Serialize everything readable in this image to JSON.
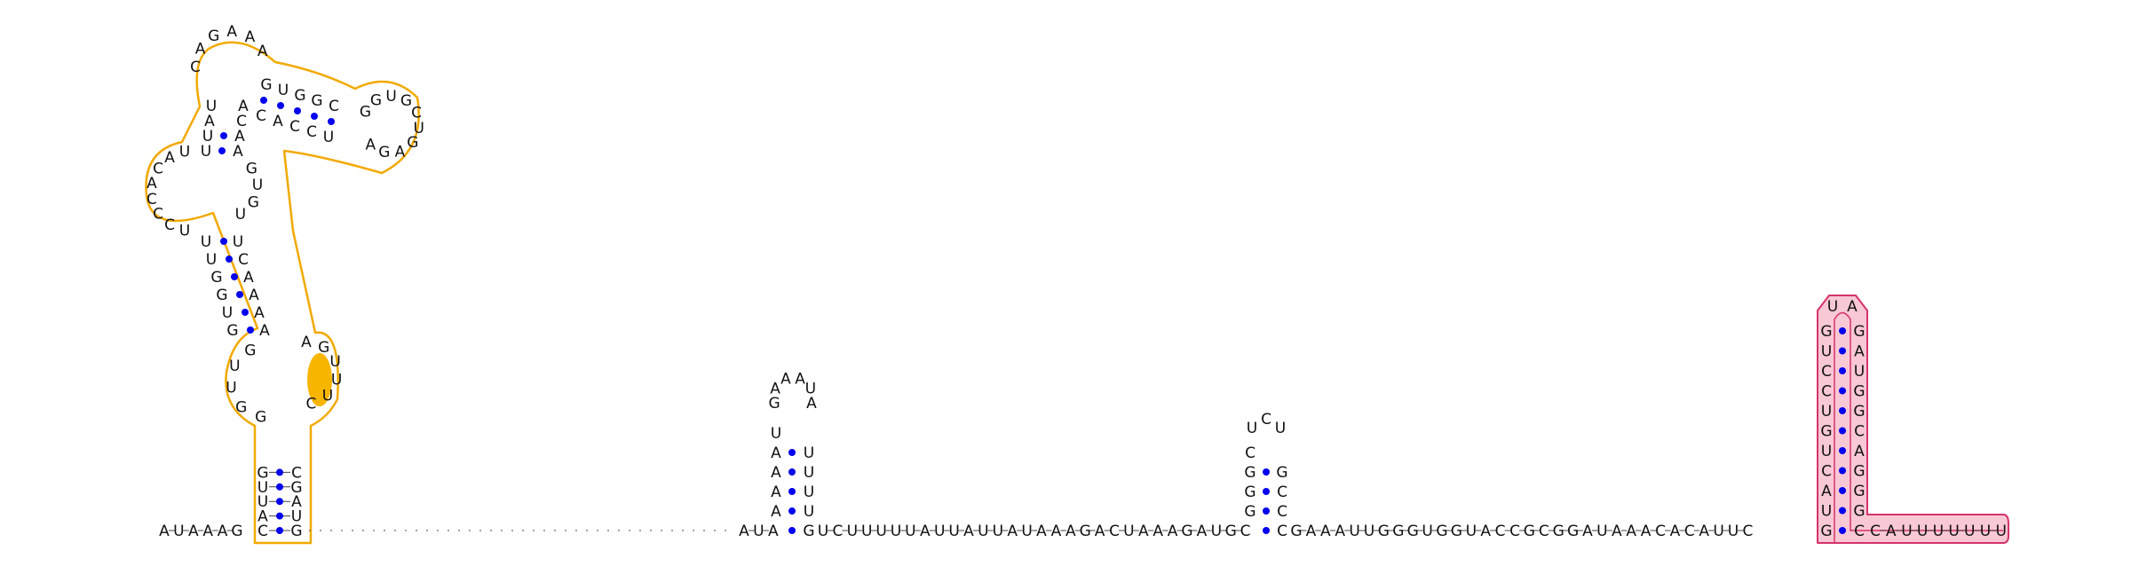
{
  "colors": {
    "background": "#ffffff",
    "base_text": "#111111",
    "backbone": "#444444",
    "base_pair_dot": "#0000ee",
    "domain1_outline": "#f2a900",
    "domain1_highlight": "#f7b500",
    "domain2_outline": "#d6336c",
    "domain2_fill": "#f8c8d4"
  },
  "sequence": {
    "five_prime_start": "AUAAAG",
    "stem1_left": "CAUUG",
    "stem1_right": "GUAGC",
    "domain1_loop_left": "GUGGUUUUUGAAGCU",
    "domain1_top": "CAUCACCAUUCAGAAGGUGGCGGUGCUGAGAGUCCACACUUGUGAAAACU",
    "linker_gap": ".....................",
    "mid_segment": "AUA",
    "hairpin1_stem_5": "AAAAU",
    "hairpin1_loop": "GAAAUA",
    "hairpin1_stem_3": "UUUUG",
    "spacer1": "UCUUUUUAUUAUUAUAAAGACUAAAGAUGC",
    "hairpin2_stem_5": "GGGC",
    "hairpin2_loop": "UCU",
    "hairpin2_stem_3": "GCCC",
    "spacer2": "GAAAUUGGGUGGUACCGCGGAUAAACACAUUC",
    "terminator_stem_5": "GUACUGUCCUG",
    "terminator_loop": "UA",
    "terminator_stem_3": "GAUGGCAGGGC",
    "three_prime_tail": "CAUUUUUUU"
  }
}
